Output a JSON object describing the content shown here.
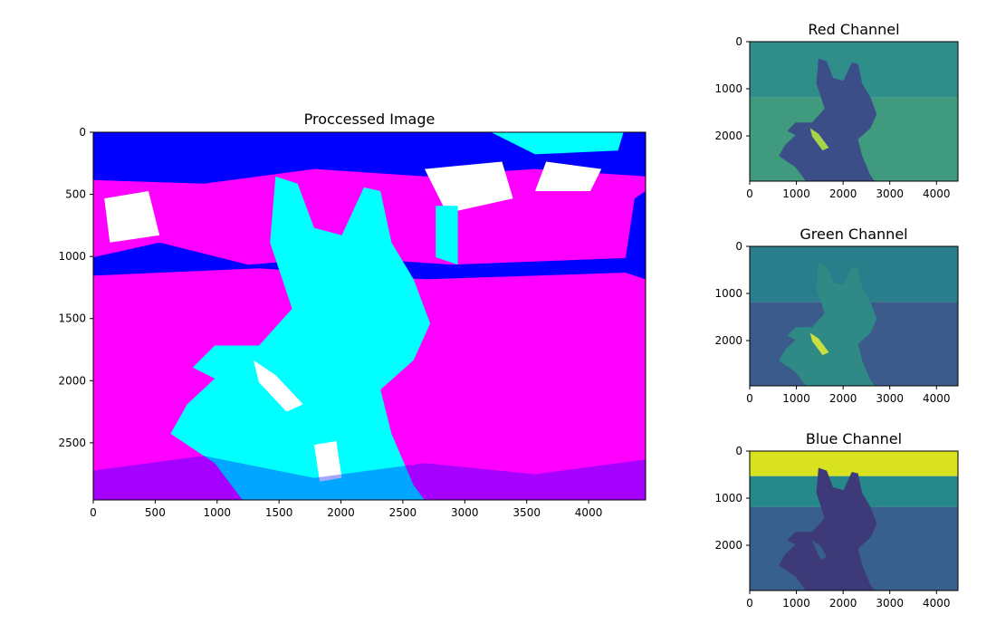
{
  "chart_data": [
    {
      "type": "image",
      "id": "main",
      "title": "Proccessed Image",
      "xlim": [
        0,
        4460
      ],
      "ylim": [
        2960,
        0
      ],
      "xticks": [
        0,
        500,
        1000,
        1500,
        2000,
        2500,
        3000,
        3500,
        4000
      ],
      "yticks": [
        0,
        500,
        1000,
        1500,
        2000,
        2500
      ],
      "palette": {
        "background": "#ff00ff",
        "sky": "#0000ff",
        "dog": "#00ffff",
        "highlight": "#ffffff"
      }
    },
    {
      "type": "image",
      "id": "red",
      "title": "Red Channel",
      "xlim": [
        0,
        4460
      ],
      "ylim": [
        2960,
        0
      ],
      "xticks": [
        0,
        1000,
        2000,
        3000,
        4000
      ],
      "yticks": [
        0,
        1000,
        2000
      ],
      "palette": {
        "field": "#2f8e8a",
        "grass": "#3f9a7e",
        "dog": "#3b4e88",
        "collar": "#a8d448"
      }
    },
    {
      "type": "image",
      "id": "green",
      "title": "Green Channel",
      "xlim": [
        0,
        4460
      ],
      "ylim": [
        2960,
        0
      ],
      "xticks": [
        0,
        1000,
        2000,
        3000,
        4000
      ],
      "yticks": [
        0,
        1000,
        2000
      ],
      "palette": {
        "field": "#2a7d8b",
        "grass": "#3b5b8c",
        "dog": "#2f8a86",
        "collar": "#c9e040"
      }
    },
    {
      "type": "image",
      "id": "blue",
      "title": "Blue Channel",
      "xlim": [
        0,
        4460
      ],
      "ylim": [
        2960,
        0
      ],
      "xticks": [
        0,
        1000,
        2000,
        3000,
        4000
      ],
      "yticks": [
        0,
        1000,
        2000
      ],
      "palette": {
        "sky": "#d9e21f",
        "field": "#27888c",
        "grass": "#37608c",
        "dog": "#3e3a7a"
      }
    }
  ]
}
